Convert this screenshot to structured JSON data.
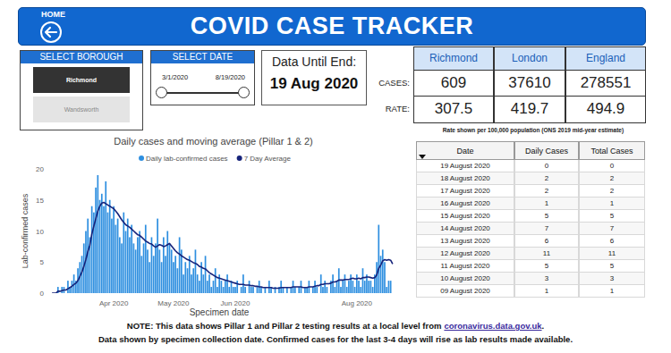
{
  "header": {
    "home": "HOME",
    "title": "COVID CASE TRACKER"
  },
  "borough_filter": {
    "title": "SELECT BOROUGH",
    "options": [
      "Richmond",
      "Wandsworth"
    ],
    "selected": "Richmond"
  },
  "date_filter": {
    "title": "SELECT DATE",
    "start": "3/1/2020",
    "end": "8/19/2020"
  },
  "data_until": {
    "label": "Data Until End:",
    "date": "19 Aug 2020"
  },
  "summary": {
    "columns": [
      "Richmond",
      "London",
      "England"
    ],
    "rows": [
      {
        "label": "CASES:",
        "values": [
          609,
          37610,
          278551
        ]
      },
      {
        "label": "RATE:",
        "values": [
          307.5,
          419.7,
          494.9
        ]
      }
    ],
    "note": "Rate shown per 100,000 population (ONS 2019 mid-year estimate)"
  },
  "table": {
    "columns": [
      "Date",
      "Daily Cases",
      "Total Cases"
    ],
    "rows": [
      [
        "19 August 2020",
        0,
        0
      ],
      [
        "18 August 2020",
        2,
        2
      ],
      [
        "17 August 2020",
        2,
        2
      ],
      [
        "16 August 2020",
        1,
        1
      ],
      [
        "15 August 2020",
        5,
        5
      ],
      [
        "14 August 2020",
        7,
        7
      ],
      [
        "13 August 2020",
        6,
        6
      ],
      [
        "12 August 2020",
        11,
        11
      ],
      [
        "11 August 2020",
        5,
        5
      ],
      [
        "10 August 2020",
        3,
        3
      ],
      [
        "09 August 2020",
        1,
        1
      ]
    ]
  },
  "footer": {
    "note": "NOTE: This data shows Pillar 1 and Pillar 2 testing results at a local level from",
    "link": "coronavirus.data.gov.uk",
    "link_end": ".",
    "line2": "Data shown by specimen collection date. Confirmed cases for the last 3-4 days will rise as lab results made available."
  },
  "chart_data": {
    "type": "bar",
    "title": "Daily cases and moving average (Pillar 1 & 2)",
    "x_label": "Specimen date",
    "y_label": "Lab-confirmed cases",
    "categories": [
      null,
      null,
      null,
      null,
      null,
      null,
      null,
      null,
      null,
      null,
      null,
      null,
      null,
      null,
      null,
      null,
      null,
      null,
      null,
      null,
      null,
      null,
      null,
      null,
      null,
      null,
      null,
      null,
      null,
      null,
      null,
      "Apr 2020",
      null,
      null,
      null,
      null,
      null,
      null,
      null,
      null,
      null,
      null,
      null,
      null,
      null,
      null,
      null,
      null,
      null,
      null,
      null,
      null,
      null,
      null,
      null,
      null,
      null,
      null,
      null,
      null,
      null,
      "May 2020",
      null,
      null,
      null,
      null,
      null,
      null,
      null,
      null,
      null,
      null,
      null,
      null,
      null,
      null,
      null,
      null,
      null,
      null,
      null,
      null,
      null,
      null,
      null,
      null,
      null,
      null,
      null,
      null,
      null,
      null,
      "Jun 2020",
      null,
      null,
      null,
      null,
      null,
      null,
      null,
      null,
      null,
      null,
      null,
      null,
      null,
      null,
      null,
      null,
      null,
      null,
      null,
      null,
      null,
      null,
      null,
      null,
      null,
      null,
      null,
      null,
      null,
      null,
      null,
      null,
      null,
      null,
      null,
      null,
      null,
      null,
      null,
      null,
      null,
      null,
      null,
      null,
      null,
      null,
      null,
      null,
      null,
      null,
      null,
      null,
      null,
      null,
      null,
      null,
      null,
      null,
      null,
      null,
      "Aug 2020",
      null,
      null,
      null,
      null,
      null,
      null,
      null,
      null,
      null,
      null,
      null,
      null,
      null,
      null,
      null,
      null,
      null,
      null
    ],
    "series": [
      {
        "name": "Daily lab-confirmed cases",
        "type": "bar",
        "color": "#2e8fe0",
        "values": [
          0,
          0,
          0,
          1,
          0,
          1,
          1,
          0,
          2,
          1,
          2,
          3,
          2,
          4,
          5,
          6,
          8,
          10,
          12,
          9,
          14,
          13,
          17,
          19,
          15,
          16,
          14,
          18,
          13,
          15,
          12,
          14,
          11,
          12,
          9,
          8,
          13,
          10,
          12,
          9,
          11,
          8,
          7,
          9,
          10,
          6,
          8,
          11,
          7,
          5,
          9,
          6,
          8,
          12,
          7,
          5,
          9,
          6,
          10,
          8,
          7,
          5,
          6,
          4,
          9,
          7,
          3,
          5,
          4,
          6,
          3,
          4,
          7,
          3,
          2,
          5,
          3,
          6,
          2,
          3,
          1,
          2,
          4,
          1,
          3,
          2,
          1,
          2,
          3,
          1,
          2,
          1,
          1,
          2,
          0,
          1,
          3,
          1,
          0,
          2,
          1,
          1,
          0,
          1,
          2,
          1,
          0,
          1,
          0,
          2,
          1,
          0,
          1,
          0,
          1,
          2,
          1,
          0,
          1,
          0,
          1,
          2,
          1,
          0,
          1,
          2,
          0,
          1,
          1,
          2,
          0,
          1,
          2,
          1,
          0,
          3,
          1,
          2,
          1,
          0,
          2,
          3,
          1,
          2,
          4,
          1,
          2,
          3,
          1,
          2,
          3,
          2,
          1,
          3,
          2,
          1,
          4,
          2,
          3,
          2,
          2,
          1,
          3,
          5,
          11,
          6,
          7,
          5,
          1,
          2,
          2,
          0
        ]
      },
      {
        "name": "7 Day Average",
        "type": "line",
        "color": "#16237a",
        "values": [
          0,
          0,
          0,
          0.3,
          0.3,
          0.4,
          0.5,
          0.5,
          0.7,
          0.9,
          1.1,
          1.4,
          1.6,
          2.0,
          2.7,
          3.4,
          4.3,
          5.4,
          6.7,
          7.7,
          9.5,
          10.8,
          12.0,
          13.2,
          14.0,
          14.5,
          14.6,
          14.4,
          14.2,
          14.0,
          13.8,
          13.6,
          13.2,
          12.8,
          12.3,
          11.8,
          11.4,
          11.0,
          10.8,
          10.6,
          10.3,
          10.0,
          9.7,
          9.4,
          9.3,
          9.0,
          8.7,
          8.4,
          8.2,
          8.0,
          7.9,
          7.6,
          7.4,
          7.6,
          7.8,
          7.7,
          7.5,
          7.6,
          7.8,
          8.0,
          7.6,
          7.2,
          6.8,
          6.5,
          6.3,
          6.0,
          5.8,
          5.6,
          5.4,
          5.3,
          5.1,
          4.9,
          4.8,
          4.6,
          4.3,
          4.2,
          4.0,
          3.9,
          3.6,
          3.3,
          3.1,
          2.9,
          2.7,
          2.5,
          2.4,
          2.3,
          2.2,
          2.1,
          2.0,
          1.9,
          1.8,
          1.7,
          1.6,
          1.5,
          1.4,
          1.4,
          1.4,
          1.3,
          1.3,
          1.3,
          1.2,
          1.2,
          1.1,
          1.1,
          1.0,
          1.0,
          0.9,
          0.9,
          0.9,
          0.9,
          0.9,
          0.8,
          0.8,
          0.8,
          0.8,
          0.9,
          0.9,
          0.9,
          0.9,
          0.9,
          0.9,
          1.0,
          1.0,
          1.0,
          1.0,
          1.0,
          0.9,
          0.9,
          0.9,
          1.0,
          1.0,
          1.0,
          1.1,
          1.2,
          1.2,
          1.4,
          1.4,
          1.5,
          1.5,
          1.5,
          1.6,
          1.8,
          1.8,
          1.9,
          2.1,
          2.1,
          2.1,
          2.2,
          2.2,
          2.2,
          2.3,
          2.4,
          2.3,
          2.3,
          2.4,
          2.3,
          2.5,
          2.5,
          2.6,
          2.6,
          2.5,
          2.4,
          2.5,
          2.9,
          4.0,
          4.5,
          5.2,
          5.4,
          5.3,
          5.4,
          5.3,
          4.7
        ]
      }
    ],
    "ylim": [
      0,
      20
    ],
    "yticks": [
      0,
      5,
      10,
      15,
      20
    ],
    "grid": false,
    "legend": "top"
  }
}
